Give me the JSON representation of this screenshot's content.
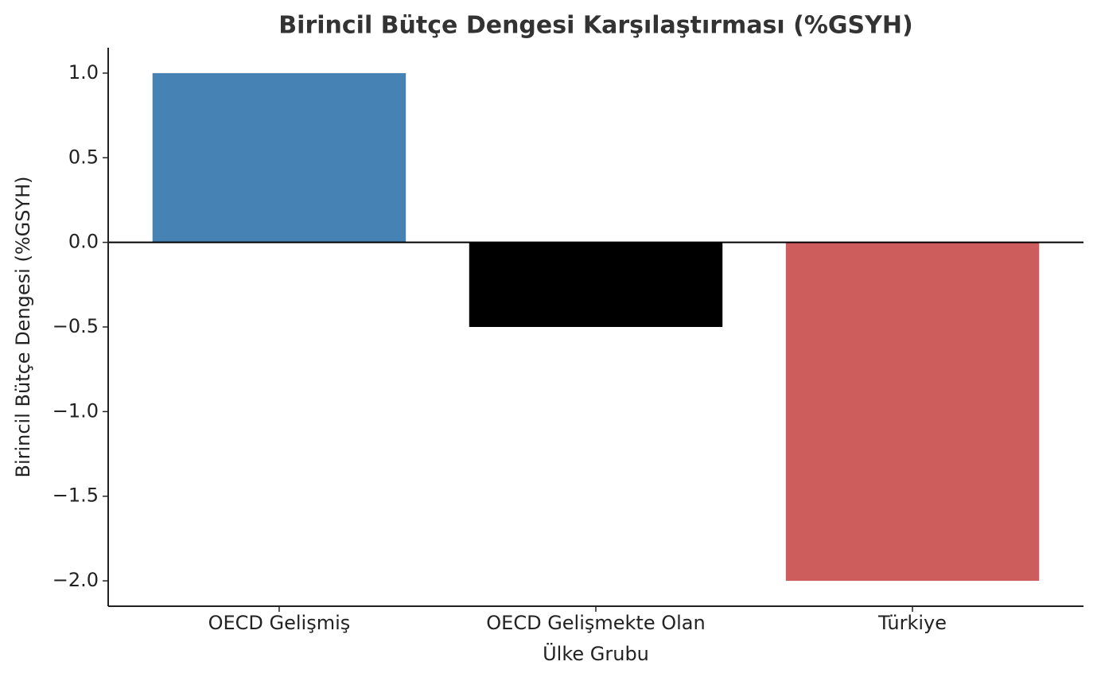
{
  "chart_data": {
    "type": "bar",
    "title": "Birincil Bütçe Dengesi Karşılaştırması (%GSYH)",
    "xlabel": "Ülke Grubu",
    "ylabel": "Birincil Bütçe Dengesi (%GSYH)",
    "categories": [
      "OECD Gelişmiş",
      "OECD Gelişmekte Olan",
      "Türkiye"
    ],
    "values": [
      1.0,
      -0.5,
      -2.0
    ],
    "colors": [
      "#4682b4",
      "#000000",
      "#cd5c5c"
    ],
    "ylim": [
      -2.15,
      1.15
    ],
    "yticks": [
      {
        "value": -2.0,
        "label": "−2.0"
      },
      {
        "value": -1.5,
        "label": "−1.5"
      },
      {
        "value": -1.0,
        "label": "−1.0"
      },
      {
        "value": -0.5,
        "label": "−0.5"
      },
      {
        "value": 0.0,
        "label": "0.0"
      },
      {
        "value": 0.5,
        "label": "0.5"
      },
      {
        "value": 1.0,
        "label": "1.0"
      }
    ],
    "grid": false
  }
}
